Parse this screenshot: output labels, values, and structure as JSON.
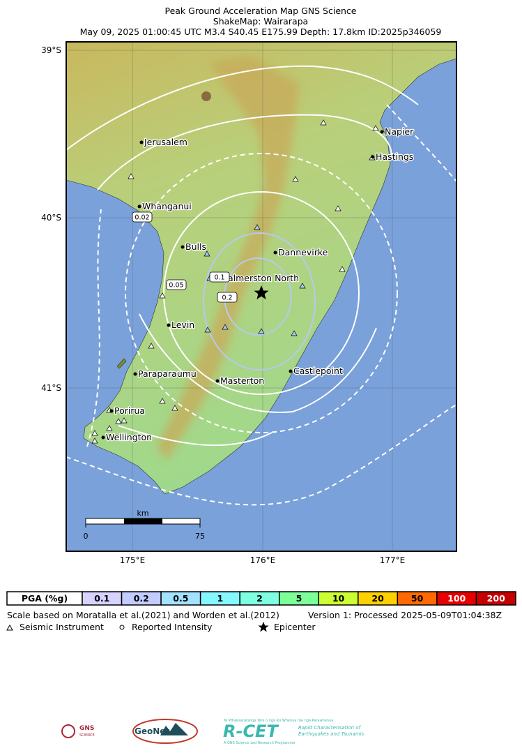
{
  "header": {
    "title": "Peak Ground Acceleration Map GNS Science",
    "subtitle": "ShakeMap: Wairarapa",
    "event": "May 09, 2025 01:00:45 UTC M3.4 S40.45 E175.99 Depth: 17.8km ID:2025p346059"
  },
  "map": {
    "lat_labels": [
      "39°S",
      "40°S",
      "41°S"
    ],
    "lon_labels": [
      "175°E",
      "176°E",
      "177°E"
    ],
    "cities": [
      "Jerusalem",
      "Whanganui",
      "Bulls",
      "Dannevirke",
      "Palmerston North",
      "Levin",
      "Paraparaumu",
      "Masterton",
      "Castlepoint",
      "Porirua",
      "Wellington",
      "Napier",
      "Hastings"
    ],
    "contour_labels": [
      "0.02",
      "0.05",
      "0.1",
      "0.2"
    ],
    "scale_bar": {
      "unit": "km",
      "start": "0",
      "end": "75"
    }
  },
  "legend": {
    "label": "PGA (%g)",
    "levels": [
      "0.1",
      "0.2",
      "0.5",
      "1",
      "2",
      "5",
      "10",
      "20",
      "50",
      "100",
      "200"
    ],
    "colors": [
      "#d6d4ff",
      "#c2ccff",
      "#a3e2ff",
      "#84f7ff",
      "#7effe0",
      "#7cff98",
      "#ccff33",
      "#ffd000",
      "#ff6a00",
      "#e60000",
      "#c40000"
    ]
  },
  "notes": {
    "source": "Scale based on Moratalla et al.(2021) and Worden et al.(2012)",
    "version": "Version 1: Processed 2025-05-09T01:04:38Z",
    "symbols": [
      "Seismic Instrument",
      "Reported Intensity",
      "Epicenter"
    ]
  },
  "logos": [
    "GNS",
    "SCIENCE",
    "GeoNet",
    "R-CET",
    "Te Whakaaratanga Tere o ngā Rū Whenua me ngā Parawhenua",
    "Rapid Characterisation of",
    "Earthquakes and Tsunamis",
    "A GNS Science Led Research Programme"
  ]
}
